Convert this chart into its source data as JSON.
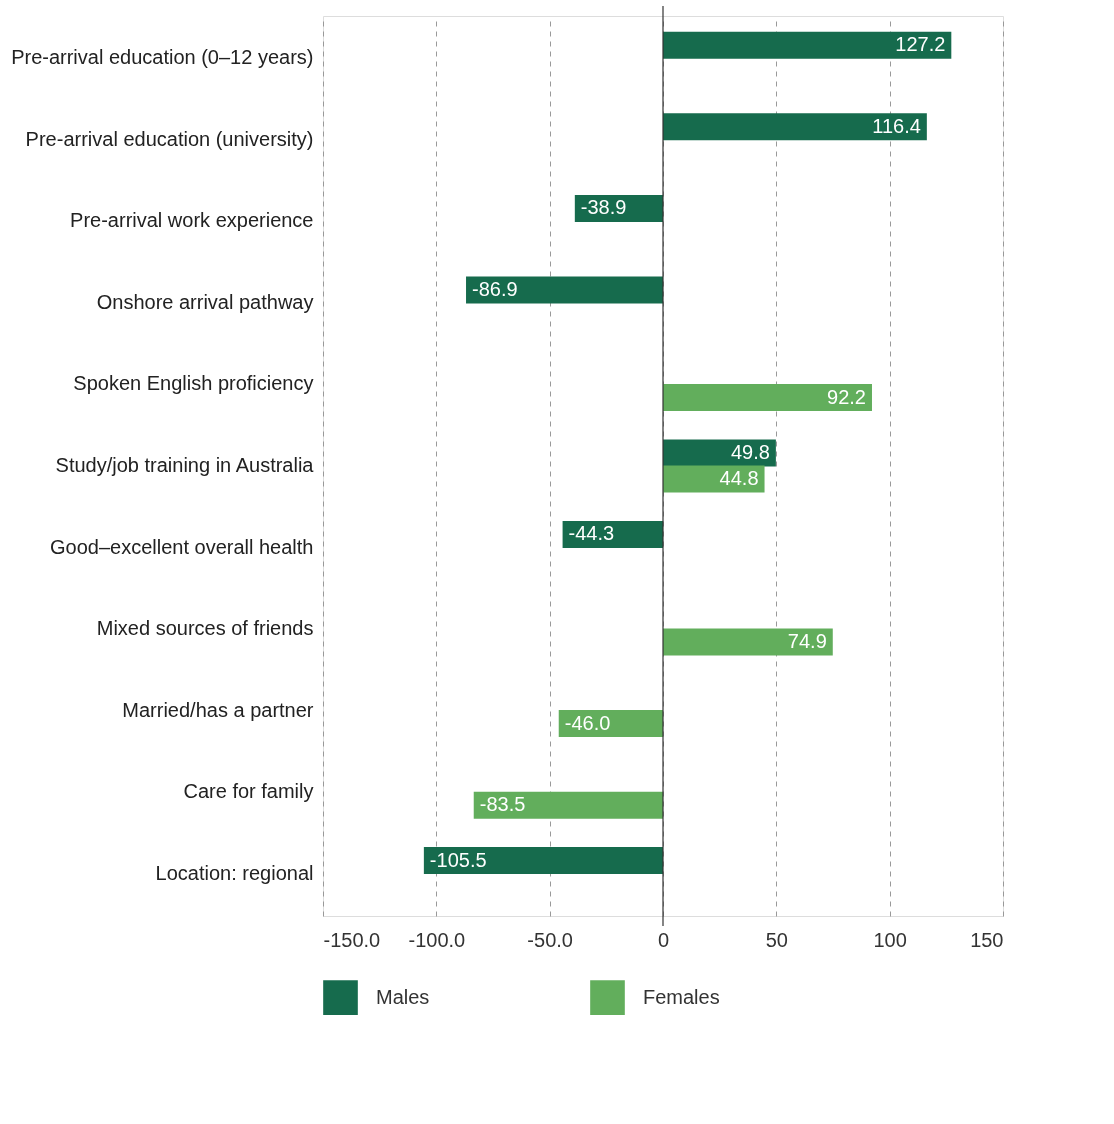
{
  "chart_data": {
    "type": "bar",
    "orientation": "horizontal",
    "categories": [
      "Pre-arrival education  (0–12 years)",
      "Pre-arrival education (university)",
      "Pre-arrival work experience",
      "Onshore arrival pathway",
      "Spoken English proficiency",
      "Study/job training in Australia",
      "Good–excellent overall health",
      "Mixed sources of friends",
      "Married/has a partner",
      "Care for family",
      "Location: regional"
    ],
    "series": [
      {
        "name": "Males",
        "color": "#166b4d",
        "values": [
          127.2,
          116.4,
          -38.9,
          -86.9,
          null,
          49.8,
          -44.3,
          null,
          null,
          null,
          -105.5
        ],
        "value_labels": [
          "127.2",
          "116.4",
          "-38.9",
          "-86.9",
          null,
          "49.8",
          "-44.3",
          null,
          null,
          null,
          "-105.5"
        ]
      },
      {
        "name": "Females",
        "color": "#62ae5c",
        "values": [
          null,
          null,
          null,
          null,
          92.2,
          44.8,
          null,
          74.9,
          -46.0,
          -83.5,
          null
        ],
        "value_labels": [
          null,
          null,
          null,
          null,
          "92.2",
          "44.8",
          null,
          "74.9",
          "-46.0",
          "-83.5",
          null
        ]
      }
    ],
    "xlim": [
      -150,
      150
    ],
    "xticks": [
      {
        "value": -150,
        "label": "-150.0"
      },
      {
        "value": -100,
        "label": "-100.0"
      },
      {
        "value": -50,
        "label": "-50.0"
      },
      0,
      50,
      100,
      150
    ],
    "ref_lines": [
      {
        "axis": "x",
        "value": 0,
        "color": "#333333"
      }
    ],
    "grid": "x",
    "legend": "bottom"
  }
}
